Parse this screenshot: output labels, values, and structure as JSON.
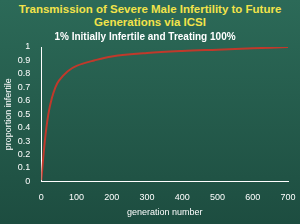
{
  "chart_data": {
    "type": "line",
    "title": "Transmission of Severe Male Infertility to Future Generations via ICSI",
    "subtitle": "1% Initially Infertile and Treating 100%",
    "x_label": "generation number",
    "y_label": "proportion infertile",
    "x": [
      0,
      10,
      20,
      30,
      40,
      50,
      75,
      100,
      150,
      200,
      300,
      400,
      500,
      600,
      700
    ],
    "values": [
      0.01,
      0.3,
      0.5,
      0.62,
      0.7,
      0.75,
      0.82,
      0.86,
      0.9,
      0.93,
      0.955,
      0.97,
      0.98,
      0.99,
      1.0
    ],
    "color": "#c0392b",
    "xlim": [
      0,
      700
    ],
    "xticks": [
      0,
      100,
      200,
      300,
      400,
      500,
      600,
      700
    ],
    "ylim": [
      0,
      1
    ],
    "yticks": [
      0,
      0.1,
      0.2,
      0.3,
      0.4,
      0.5,
      0.6,
      0.7,
      0.8,
      0.9,
      1
    ],
    "grid": false
  }
}
